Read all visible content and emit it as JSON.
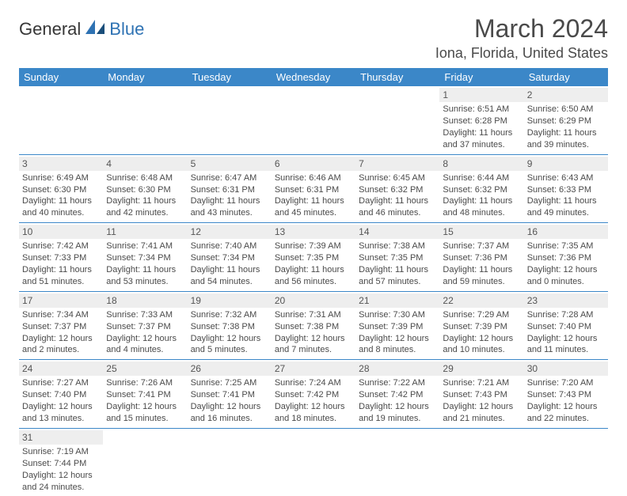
{
  "logo": {
    "part1": "General",
    "part2": "Blue"
  },
  "title": "March 2024",
  "location": "Iona, Florida, United States",
  "weekdays": [
    "Sunday",
    "Monday",
    "Tuesday",
    "Wednesday",
    "Thursday",
    "Friday",
    "Saturday"
  ],
  "colors": {
    "header_bg": "#3b87c8",
    "header_text": "#ffffff",
    "daynum_bg": "#eeeeee",
    "row_border": "#3b87c8",
    "logo_accent": "#2e72b3",
    "logo_dark": "#1a4e7a"
  },
  "weeks": [
    [
      null,
      null,
      null,
      null,
      null,
      {
        "n": "1",
        "sr": "Sunrise: 6:51 AM",
        "ss": "Sunset: 6:28 PM",
        "d1": "Daylight: 11 hours",
        "d2": "and 37 minutes."
      },
      {
        "n": "2",
        "sr": "Sunrise: 6:50 AM",
        "ss": "Sunset: 6:29 PM",
        "d1": "Daylight: 11 hours",
        "d2": "and 39 minutes."
      }
    ],
    [
      {
        "n": "3",
        "sr": "Sunrise: 6:49 AM",
        "ss": "Sunset: 6:30 PM",
        "d1": "Daylight: 11 hours",
        "d2": "and 40 minutes."
      },
      {
        "n": "4",
        "sr": "Sunrise: 6:48 AM",
        "ss": "Sunset: 6:30 PM",
        "d1": "Daylight: 11 hours",
        "d2": "and 42 minutes."
      },
      {
        "n": "5",
        "sr": "Sunrise: 6:47 AM",
        "ss": "Sunset: 6:31 PM",
        "d1": "Daylight: 11 hours",
        "d2": "and 43 minutes."
      },
      {
        "n": "6",
        "sr": "Sunrise: 6:46 AM",
        "ss": "Sunset: 6:31 PM",
        "d1": "Daylight: 11 hours",
        "d2": "and 45 minutes."
      },
      {
        "n": "7",
        "sr": "Sunrise: 6:45 AM",
        "ss": "Sunset: 6:32 PM",
        "d1": "Daylight: 11 hours",
        "d2": "and 46 minutes."
      },
      {
        "n": "8",
        "sr": "Sunrise: 6:44 AM",
        "ss": "Sunset: 6:32 PM",
        "d1": "Daylight: 11 hours",
        "d2": "and 48 minutes."
      },
      {
        "n": "9",
        "sr": "Sunrise: 6:43 AM",
        "ss": "Sunset: 6:33 PM",
        "d1": "Daylight: 11 hours",
        "d2": "and 49 minutes."
      }
    ],
    [
      {
        "n": "10",
        "sr": "Sunrise: 7:42 AM",
        "ss": "Sunset: 7:33 PM",
        "d1": "Daylight: 11 hours",
        "d2": "and 51 minutes."
      },
      {
        "n": "11",
        "sr": "Sunrise: 7:41 AM",
        "ss": "Sunset: 7:34 PM",
        "d1": "Daylight: 11 hours",
        "d2": "and 53 minutes."
      },
      {
        "n": "12",
        "sr": "Sunrise: 7:40 AM",
        "ss": "Sunset: 7:34 PM",
        "d1": "Daylight: 11 hours",
        "d2": "and 54 minutes."
      },
      {
        "n": "13",
        "sr": "Sunrise: 7:39 AM",
        "ss": "Sunset: 7:35 PM",
        "d1": "Daylight: 11 hours",
        "d2": "and 56 minutes."
      },
      {
        "n": "14",
        "sr": "Sunrise: 7:38 AM",
        "ss": "Sunset: 7:35 PM",
        "d1": "Daylight: 11 hours",
        "d2": "and 57 minutes."
      },
      {
        "n": "15",
        "sr": "Sunrise: 7:37 AM",
        "ss": "Sunset: 7:36 PM",
        "d1": "Daylight: 11 hours",
        "d2": "and 59 minutes."
      },
      {
        "n": "16",
        "sr": "Sunrise: 7:35 AM",
        "ss": "Sunset: 7:36 PM",
        "d1": "Daylight: 12 hours",
        "d2": "and 0 minutes."
      }
    ],
    [
      {
        "n": "17",
        "sr": "Sunrise: 7:34 AM",
        "ss": "Sunset: 7:37 PM",
        "d1": "Daylight: 12 hours",
        "d2": "and 2 minutes."
      },
      {
        "n": "18",
        "sr": "Sunrise: 7:33 AM",
        "ss": "Sunset: 7:37 PM",
        "d1": "Daylight: 12 hours",
        "d2": "and 4 minutes."
      },
      {
        "n": "19",
        "sr": "Sunrise: 7:32 AM",
        "ss": "Sunset: 7:38 PM",
        "d1": "Daylight: 12 hours",
        "d2": "and 5 minutes."
      },
      {
        "n": "20",
        "sr": "Sunrise: 7:31 AM",
        "ss": "Sunset: 7:38 PM",
        "d1": "Daylight: 12 hours",
        "d2": "and 7 minutes."
      },
      {
        "n": "21",
        "sr": "Sunrise: 7:30 AM",
        "ss": "Sunset: 7:39 PM",
        "d1": "Daylight: 12 hours",
        "d2": "and 8 minutes."
      },
      {
        "n": "22",
        "sr": "Sunrise: 7:29 AM",
        "ss": "Sunset: 7:39 PM",
        "d1": "Daylight: 12 hours",
        "d2": "and 10 minutes."
      },
      {
        "n": "23",
        "sr": "Sunrise: 7:28 AM",
        "ss": "Sunset: 7:40 PM",
        "d1": "Daylight: 12 hours",
        "d2": "and 11 minutes."
      }
    ],
    [
      {
        "n": "24",
        "sr": "Sunrise: 7:27 AM",
        "ss": "Sunset: 7:40 PM",
        "d1": "Daylight: 12 hours",
        "d2": "and 13 minutes."
      },
      {
        "n": "25",
        "sr": "Sunrise: 7:26 AM",
        "ss": "Sunset: 7:41 PM",
        "d1": "Daylight: 12 hours",
        "d2": "and 15 minutes."
      },
      {
        "n": "26",
        "sr": "Sunrise: 7:25 AM",
        "ss": "Sunset: 7:41 PM",
        "d1": "Daylight: 12 hours",
        "d2": "and 16 minutes."
      },
      {
        "n": "27",
        "sr": "Sunrise: 7:24 AM",
        "ss": "Sunset: 7:42 PM",
        "d1": "Daylight: 12 hours",
        "d2": "and 18 minutes."
      },
      {
        "n": "28",
        "sr": "Sunrise: 7:22 AM",
        "ss": "Sunset: 7:42 PM",
        "d1": "Daylight: 12 hours",
        "d2": "and 19 minutes."
      },
      {
        "n": "29",
        "sr": "Sunrise: 7:21 AM",
        "ss": "Sunset: 7:43 PM",
        "d1": "Daylight: 12 hours",
        "d2": "and 21 minutes."
      },
      {
        "n": "30",
        "sr": "Sunrise: 7:20 AM",
        "ss": "Sunset: 7:43 PM",
        "d1": "Daylight: 12 hours",
        "d2": "and 22 minutes."
      }
    ],
    [
      {
        "n": "31",
        "sr": "Sunrise: 7:19 AM",
        "ss": "Sunset: 7:44 PM",
        "d1": "Daylight: 12 hours",
        "d2": "and 24 minutes."
      },
      null,
      null,
      null,
      null,
      null,
      null
    ]
  ]
}
